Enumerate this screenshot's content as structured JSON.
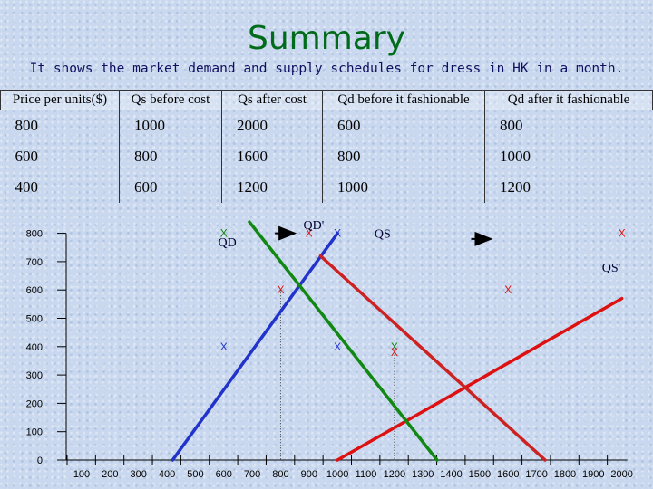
{
  "title": "Summary",
  "subtitle": "It shows the market demand and supply schedules for dress in HK in a month.",
  "table": {
    "headers": [
      "Price per units($)",
      "Qs before cost",
      "Qs after cost",
      "Qd before it fashionable",
      "Qd after it fashionable"
    ],
    "rows": [
      [
        "800",
        "1000",
        "2000",
        "600",
        "800"
      ],
      [
        "600",
        "800",
        "1600",
        "800",
        "1000"
      ],
      [
        "400",
        "600",
        "1200",
        "1000",
        "1200"
      ]
    ]
  },
  "chart_data": {
    "type": "line",
    "title": "",
    "xlabel": "",
    "ylabel": "",
    "x_ticks": [
      100,
      200,
      300,
      400,
      500,
      600,
      700,
      800,
      900,
      1000,
      1100,
      1200,
      1300,
      1400,
      1500,
      1600,
      1700,
      1800,
      1900,
      2000
    ],
    "y_ticks": [
      0,
      100,
      200,
      300,
      400,
      500,
      600,
      700,
      800
    ],
    "grid": false,
    "series": [
      {
        "name": "QS",
        "color": "#2233cc",
        "points": [
          [
            420,
            0
          ],
          [
            1000,
            800
          ]
        ]
      },
      {
        "name": "QS'",
        "color": "#dd1111",
        "points": [
          [
            1000,
            0
          ],
          [
            2000,
            570
          ]
        ]
      },
      {
        "name": "QD",
        "color": "#118811",
        "points": [
          [
            690,
            840
          ],
          [
            1350,
            0
          ]
        ]
      },
      {
        "name": "QD'",
        "color": "#cc2222",
        "points": [
          [
            940,
            720
          ],
          [
            1730,
            0
          ]
        ]
      }
    ],
    "markers": [
      {
        "x": 600,
        "y": 400,
        "color": "#2233cc",
        "text": "X"
      },
      {
        "x": 1000,
        "y": 800,
        "color": "#2233cc",
        "text": "X"
      },
      {
        "x": 1200,
        "y": 400,
        "color": "#118811",
        "text": "X"
      },
      {
        "x": 1600,
        "y": 600,
        "color": "#dd1111",
        "text": "X"
      },
      {
        "x": 2000,
        "y": 800,
        "color": "#dd1111",
        "text": "X"
      },
      {
        "x": 800,
        "y": 600,
        "color": "#dd1111",
        "text": "X"
      },
      {
        "x": 1000,
        "y": 400,
        "color": "#2233cc",
        "text": "X"
      },
      {
        "x": 1200,
        "y": 380,
        "color": "#dd1111",
        "text": "X"
      },
      {
        "x": 600,
        "y": 800,
        "color": "#118811",
        "text": "X"
      },
      {
        "x": 900,
        "y": 800,
        "color": "#dd1111",
        "text": "X"
      }
    ],
    "labels": [
      {
        "text": "QD",
        "x": 580,
        "y": 770
      },
      {
        "text": "QD'",
        "x": 880,
        "y": 830
      },
      {
        "text": "QS",
        "x": 1130,
        "y": 800
      },
      {
        "text": "QS'",
        "x": 1930,
        "y": 680
      }
    ],
    "arrows": [
      {
        "from": [
          780,
          800
        ],
        "to": [
          850,
          800
        ]
      },
      {
        "from": [
          1470,
          780
        ],
        "to": [
          1540,
          780
        ]
      }
    ],
    "guides": [
      {
        "x": 800,
        "y": 600
      },
      {
        "x": 1200,
        "y": 400
      }
    ]
  }
}
